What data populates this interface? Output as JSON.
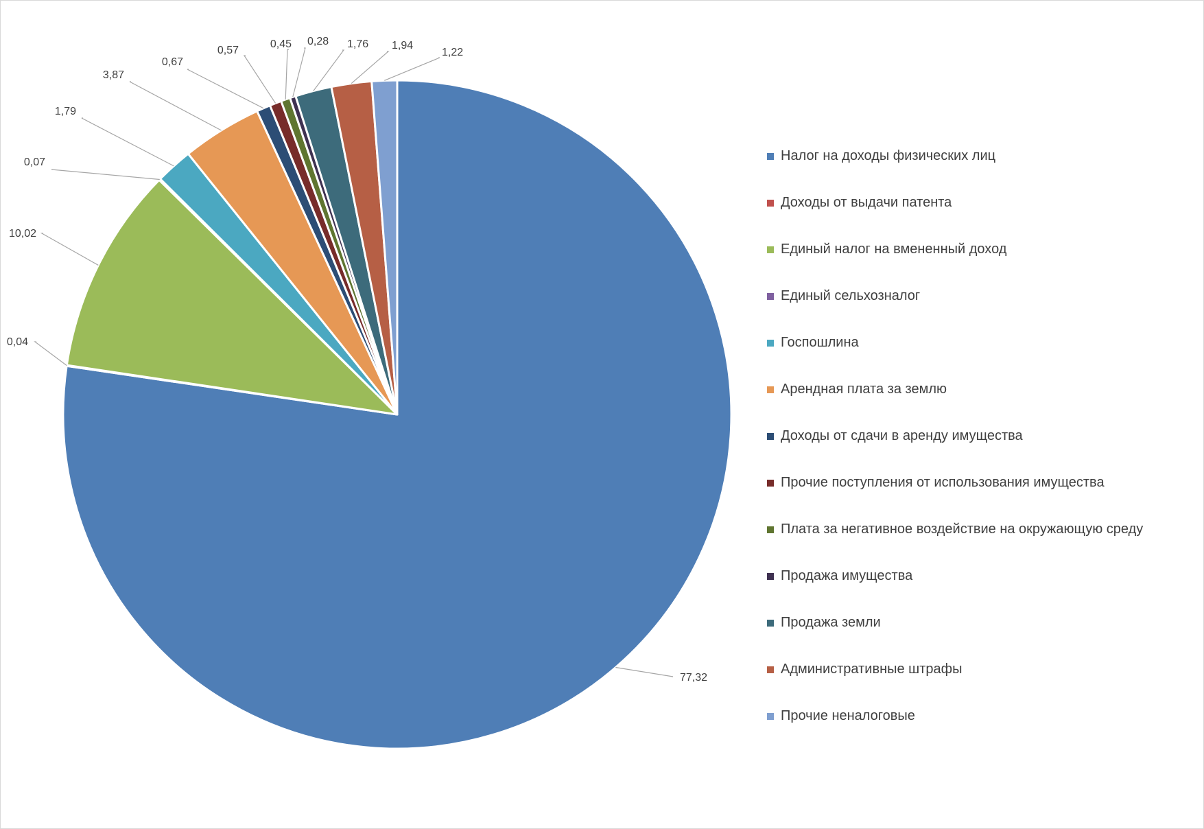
{
  "chart_data": {
    "type": "pie",
    "legend_position": "right",
    "slices": [
      {
        "name": "Налог на доходы физических лиц",
        "value": 77.32,
        "label": "77,32",
        "color": "#4f7eb6"
      },
      {
        "name": "Доходы от выдачи патента",
        "value": 0.04,
        "label": "0,04",
        "color": "#c0504d"
      },
      {
        "name": "Единый налог на вмененный доход",
        "value": 10.02,
        "label": "10,02",
        "color": "#9bbb59"
      },
      {
        "name": "Единый сельхозналог",
        "value": 0.07,
        "label": "0,07",
        "color": "#7f60a0"
      },
      {
        "name": "Госпошлина",
        "value": 1.79,
        "label": "1,79",
        "color": "#4ba8c1"
      },
      {
        "name": "Арендная плата за землю",
        "value": 3.87,
        "label": "3,87",
        "color": "#e69855"
      },
      {
        "name": "Доходы от сдачи в аренду имущества",
        "value": 0.67,
        "label": "0,67",
        "color": "#2c4d75"
      },
      {
        "name": "Прочие поступления от использования имущества",
        "value": 0.57,
        "label": "0,57",
        "color": "#772c2a"
      },
      {
        "name": "Плата за негативное воздействие на окружающую среду",
        "value": 0.45,
        "label": "0,45",
        "color": "#5f7530"
      },
      {
        "name": "Продажа имущества",
        "value": 0.28,
        "label": "0,28",
        "color": "#3f3151"
      },
      {
        "name": "Продажа земли",
        "value": 1.76,
        "label": "1,76",
        "color": "#3d6b7b"
      },
      {
        "name": "Административные штрафы",
        "value": 1.94,
        "label": "1,94",
        "color": "#b65f45"
      },
      {
        "name": "Прочие неналоговые",
        "value": 1.22,
        "label": "1,22",
        "color": "#7f9fd0"
      }
    ]
  }
}
